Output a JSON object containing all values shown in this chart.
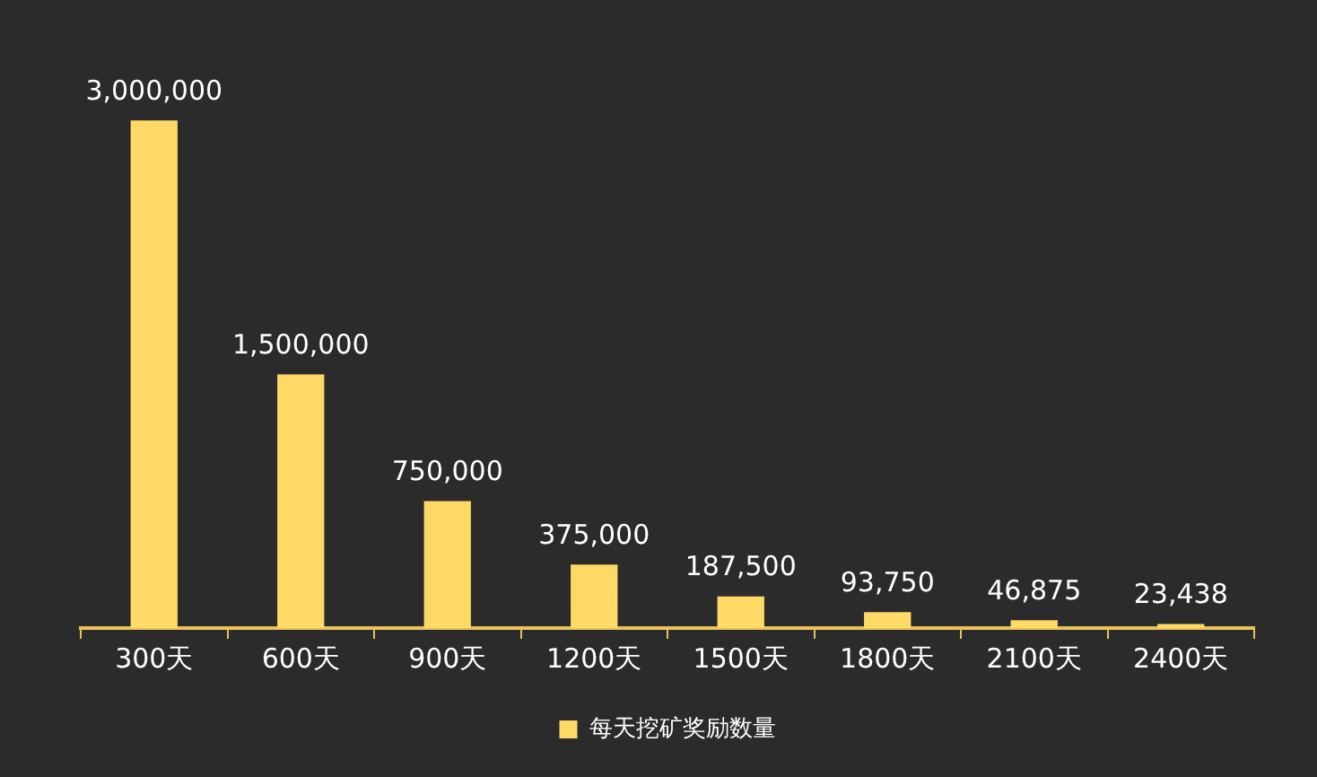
{
  "chart_data": {
    "type": "bar",
    "categories": [
      "300天",
      "600天",
      "900天",
      "1200天",
      "1500天",
      "1800天",
      "2100天",
      "2400天"
    ],
    "series": [
      {
        "name": "每天挖矿奖励数量",
        "color": "#ffd966",
        "values": [
          3000000,
          1500000,
          750000,
          375000,
          187500,
          93750,
          46875,
          23438
        ],
        "value_labels": [
          "3,000,000",
          "1,500,000",
          "750,000",
          "375,000",
          "187,500",
          "93,750",
          "46,875",
          "23,438"
        ]
      }
    ],
    "legend": "bottom"
  }
}
